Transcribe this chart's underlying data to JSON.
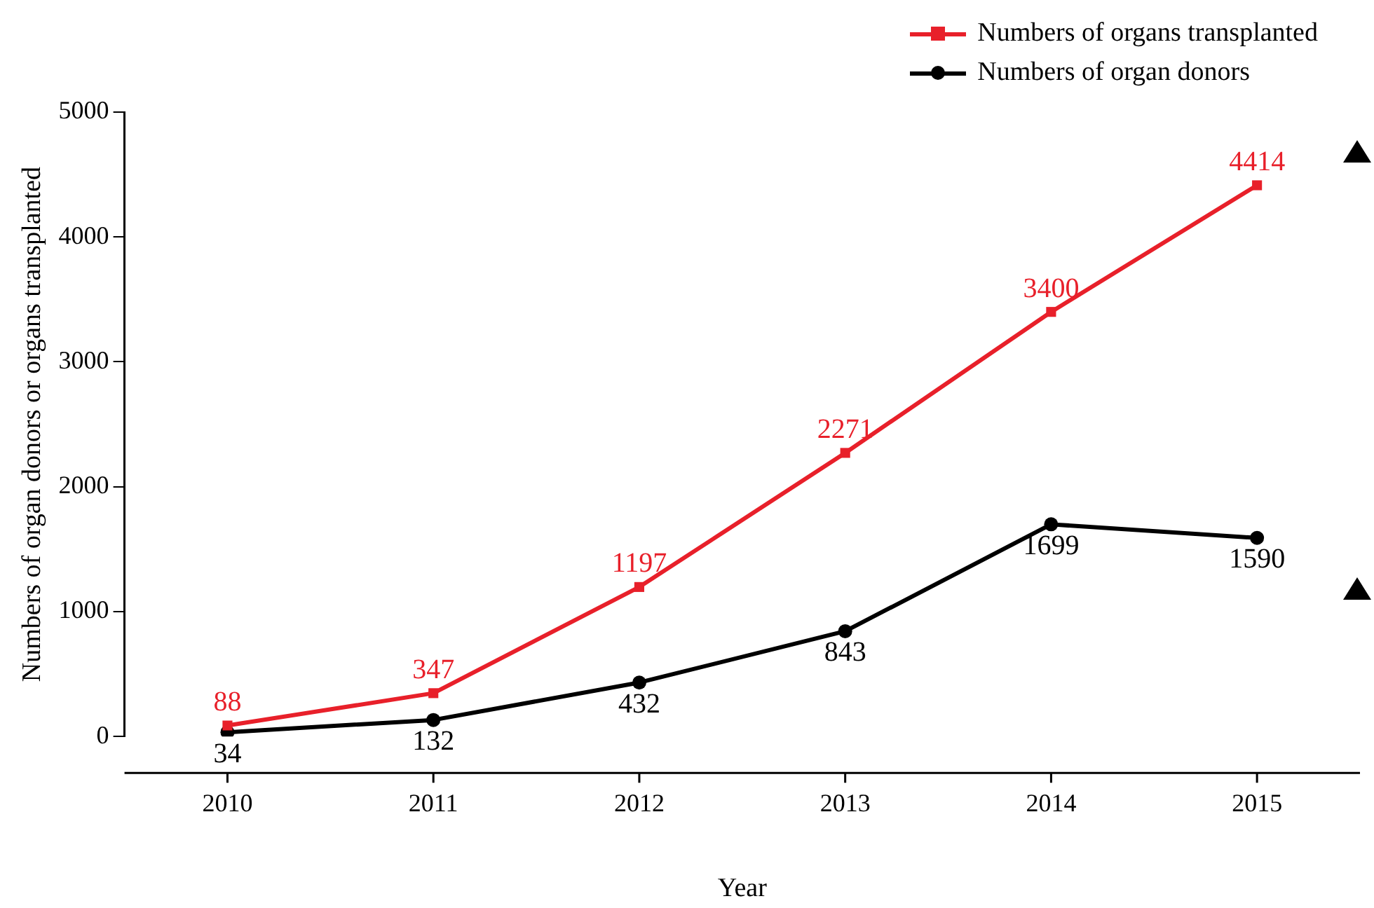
{
  "chart_data": {
    "type": "line",
    "xlabel": "Year",
    "ylabel": "Numbers of organ donors or organs transplanted",
    "categories": [
      "2010",
      "2011",
      "2012",
      "2013",
      "2014",
      "2015"
    ],
    "series": [
      {
        "name": "Numbers of organs transplanted",
        "color": "#e8202a",
        "marker": "square",
        "values": [
          88,
          347,
          1197,
          2271,
          3400,
          4414
        ]
      },
      {
        "name": "Numbers of organ donors",
        "color": "#000000",
        "marker": "circle",
        "values": [
          34,
          132,
          432,
          843,
          1699,
          1590
        ]
      }
    ],
    "ylim": [
      0,
      5000
    ],
    "yticks": [
      0,
      1000,
      2000,
      3000,
      4000,
      5000
    ],
    "grid": false,
    "legend": "top right",
    "data_labels": true,
    "line_style": "solid"
  }
}
